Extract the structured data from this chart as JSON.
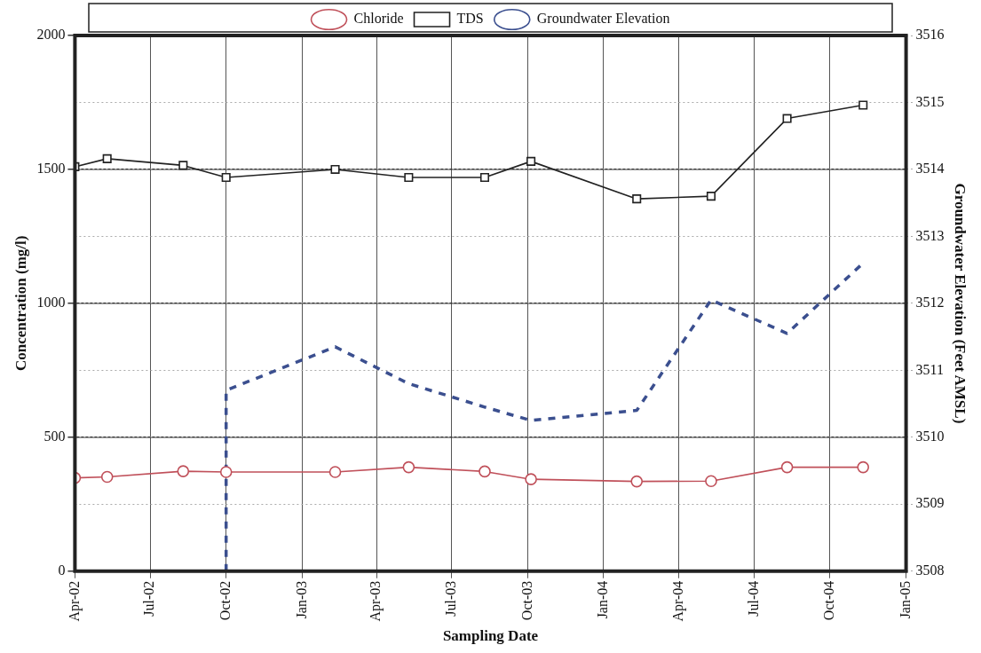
{
  "chart_data": {
    "type": "line",
    "xlabel": "Sampling Date",
    "ylabel": "Concentration (mg/l)",
    "y2label": "Groundwater Elevation (Feet AMSL)",
    "legend": "top",
    "grid": true,
    "xlim": [
      "2002-04-01",
      "2005-01-01"
    ],
    "xticks": [
      {
        "value": "2002-04-01",
        "label": "Apr-02"
      },
      {
        "value": "2002-07-01",
        "label": "Jul-02"
      },
      {
        "value": "2002-10-01",
        "label": "Oct-02"
      },
      {
        "value": "2003-01-01",
        "label": "Jan-03"
      },
      {
        "value": "2003-04-01",
        "label": "Apr-03"
      },
      {
        "value": "2003-07-01",
        "label": "Jul-03"
      },
      {
        "value": "2003-10-01",
        "label": "Oct-03"
      },
      {
        "value": "2004-01-01",
        "label": "Jan-04"
      },
      {
        "value": "2004-04-01",
        "label": "Apr-04"
      },
      {
        "value": "2004-07-01",
        "label": "Jul-04"
      },
      {
        "value": "2004-10-01",
        "label": "Oct-04"
      },
      {
        "value": "2005-01-01",
        "label": "Jan-05"
      }
    ],
    "ylim": [
      0,
      2000
    ],
    "yticks": [
      0,
      500,
      1000,
      1500,
      2000
    ],
    "y2lim": [
      3508,
      3516
    ],
    "y2ticks": [
      3508,
      3509,
      3510,
      3511,
      3512,
      3513,
      3514,
      3515,
      3516
    ],
    "series": [
      {
        "name": "Chloride",
        "color": "#c0505a",
        "marker": "circle",
        "line_style": "solid",
        "x": [
          "2002-04-01",
          "2002-05-10",
          "2002-08-10",
          "2002-10-01",
          "2003-02-10",
          "2003-05-10",
          "2003-08-10",
          "2003-10-05",
          "2004-02-10",
          "2004-05-10",
          "2004-08-10",
          "2004-11-10"
        ],
        "values": [
          348,
          352,
          373,
          370,
          370,
          388,
          372,
          343,
          335,
          336,
          388,
          388
        ]
      },
      {
        "name": "TDS",
        "color": "#222222",
        "marker": "square",
        "line_style": "solid",
        "x": [
          "2002-04-01",
          "2002-05-10",
          "2002-08-10",
          "2002-10-01",
          "2003-02-10",
          "2003-05-10",
          "2003-08-10",
          "2003-10-05",
          "2004-02-10",
          "2004-05-10",
          "2004-08-10",
          "2004-11-10"
        ],
        "values": [
          1510,
          1540,
          1515,
          1470,
          1500,
          1470,
          1470,
          1530,
          1390,
          1400,
          1690,
          1740
        ]
      },
      {
        "name": "Groundwater Elevation",
        "color": "#3b4f8f",
        "marker": "none",
        "line_style": "dashed",
        "axis": "y2",
        "x": [
          "2002-10-01",
          "2002-10-01",
          "2003-02-10",
          "2003-05-10",
          "2003-08-10",
          "2003-10-05",
          "2004-02-10",
          "2004-05-10",
          "2004-08-10",
          "2004-11-10"
        ],
        "values": [
          3508,
          3510.7,
          3511.35,
          3510.8,
          3510.45,
          3510.25,
          3510.4,
          3512.05,
          3511.55,
          3512.6
        ]
      }
    ]
  }
}
